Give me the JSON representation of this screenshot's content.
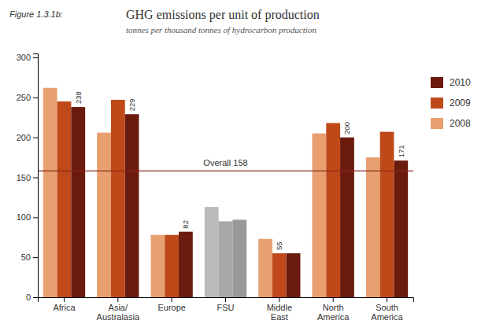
{
  "chart_data": {
    "type": "bar",
    "title": "GHG emissions per unit of production",
    "subtitle": "tonnes per thousand tonnes of hydrocarbon production",
    "categories": [
      "Africa",
      "Asia/\nAustralasia",
      "Europe",
      "FSU",
      "Middle\nEast",
      "North\nAmerica",
      "South\nAmerica"
    ],
    "series": [
      {
        "name": "2008",
        "color": "#E8A070",
        "colors": [
          "#E8A070",
          "#E8A070",
          "#E8A070",
          "#BBBBBB",
          "#E8A070",
          "#E8A070",
          "#E8A070"
        ],
        "values": [
          262,
          206,
          78,
          113,
          73,
          205,
          175
        ]
      },
      {
        "name": "2009",
        "color": "#C0491A",
        "colors": [
          "#C0491A",
          "#C0491A",
          "#C0491A",
          "#A8A8A8",
          "#C0491A",
          "#C0491A",
          "#C0491A"
        ],
        "values": [
          245,
          247,
          78,
          95,
          55,
          218,
          207
        ]
      },
      {
        "name": "2010",
        "color": "#6B1A0E",
        "colors": [
          "#6B1A0E",
          "#6B1A0E",
          "#6B1A0E",
          "#999999",
          "#6B1A0E",
          "#6B1A0E",
          "#6B1A0E"
        ],
        "values": [
          238,
          229,
          82,
          97,
          55,
          200,
          171
        ]
      }
    ],
    "annotations": [
      {
        "text": "Figure 1.3.1b:"
      },
      {
        "text": "238",
        "category": "Africa",
        "series": "2010"
      },
      {
        "text": "229",
        "category": "Asia/\nAustralasia",
        "series": "2010"
      },
      {
        "text": "82",
        "category": "Europe",
        "series": "2010"
      },
      {
        "text": "55",
        "category": "Middle\nEast",
        "series": "2009"
      },
      {
        "text": "200",
        "category": "North\nAmerica",
        "series": "2010"
      },
      {
        "text": "171",
        "category": "South\nAmerica",
        "series": "2010"
      }
    ],
    "reference_lines": [
      {
        "value": 158,
        "label": "Overall 158",
        "color": "#8B2A1A"
      }
    ],
    "ylim": [
      0,
      305
    ],
    "yticks": [
      0,
      50,
      100,
      150,
      200,
      250,
      300
    ],
    "grid": false,
    "legend": "right"
  }
}
